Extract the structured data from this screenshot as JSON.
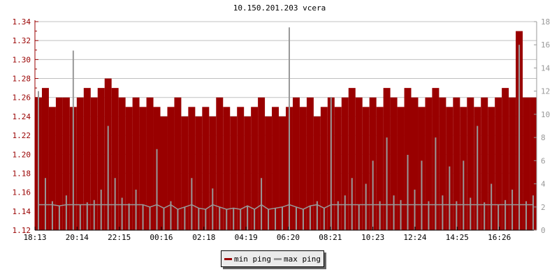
{
  "chart_data": {
    "type": "bar",
    "title": "10.150.201.203 vcera",
    "x_tick_labels": [
      "18:13",
      "20:14",
      "22:15",
      "00:16",
      "02:18",
      "04:19",
      "06:20",
      "08:21",
      "10:23",
      "12:24",
      "14:25",
      "16:26"
    ],
    "x_tick_minutes": [
      0,
      121,
      242,
      363,
      485,
      606,
      727,
      848,
      970,
      1091,
      1212,
      1333
    ],
    "x_range_minutes": [
      0,
      1440
    ],
    "sample_interval_minutes": 20,
    "y_left": {
      "range": [
        1.12,
        1.34
      ],
      "ticks": [
        "1.12",
        "1.14",
        "1.16",
        "1.18",
        "1.20",
        "1.22",
        "1.24",
        "1.26",
        "1.28",
        "1.30",
        "1.32",
        "1.34"
      ],
      "color": "#990000"
    },
    "y_right": {
      "range": [
        0,
        18
      ],
      "ticks": [
        "0",
        "2",
        "4",
        "6",
        "8",
        "10",
        "12",
        "14",
        "16",
        "18"
      ],
      "color": "#999999"
    },
    "grid": true,
    "legend_position": "bottom",
    "series": [
      {
        "name": "min ping",
        "axis": "left",
        "color": "#990000",
        "values": [
          1.26,
          1.27,
          1.25,
          1.26,
          1.26,
          1.25,
          1.26,
          1.27,
          1.26,
          1.27,
          1.28,
          1.27,
          1.26,
          1.25,
          1.26,
          1.25,
          1.26,
          1.25,
          1.24,
          1.25,
          1.26,
          1.24,
          1.25,
          1.24,
          1.25,
          1.24,
          1.26,
          1.25,
          1.24,
          1.25,
          1.24,
          1.25,
          1.26,
          1.24,
          1.25,
          1.24,
          1.25,
          1.26,
          1.25,
          1.26,
          1.24,
          1.25,
          1.26,
          1.25,
          1.26,
          1.27,
          1.26,
          1.25,
          1.26,
          1.25,
          1.27,
          1.26,
          1.25,
          1.27,
          1.26,
          1.25,
          1.26,
          1.27,
          1.26,
          1.25,
          1.26,
          1.25,
          1.26,
          1.25,
          1.26,
          1.25,
          1.26,
          1.27,
          1.26,
          1.33,
          1.26,
          1.26
        ]
      },
      {
        "name": "max ping",
        "axis": "right",
        "color": "#999999",
        "values": [
          12,
          4.5,
          2.5,
          2.1,
          3,
          15.5,
          2.2,
          2.4,
          2.6,
          3.5,
          9,
          4.5,
          2.8,
          2.3,
          3.5,
          2.2,
          2,
          7,
          1.9,
          2.5,
          1.8,
          2,
          4.5,
          1.9,
          1.8,
          3.6,
          2,
          1.8,
          1.9,
          1.8,
          2.1,
          1.8,
          4.5,
          1.8,
          1.9,
          2,
          17.5,
          2,
          1.8,
          2.1,
          2.5,
          1.9,
          11.5,
          2.5,
          3,
          4.5,
          2.2,
          4,
          6,
          2.5,
          8,
          3,
          2.6,
          6.5,
          3.5,
          6,
          2.5,
          8,
          3,
          5.5,
          2.5,
          6,
          2.8,
          9,
          2.4,
          4,
          2.2,
          2.6,
          3.5,
          16,
          2.5,
          3
        ]
      }
    ]
  },
  "legend": {
    "min_label": "min ping",
    "max_label": "max ping"
  }
}
